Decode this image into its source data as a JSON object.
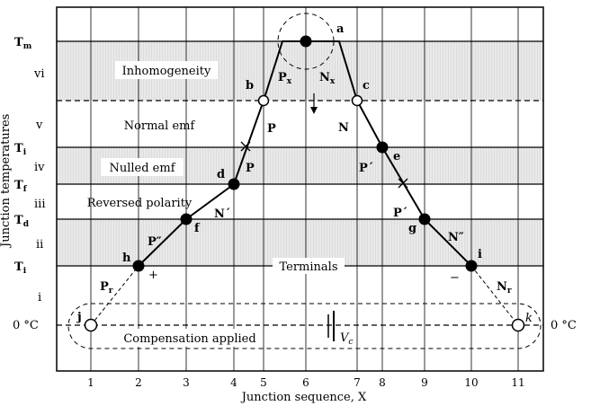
{
  "y_axis": {
    "title": "Junction temperatures",
    "levels": [
      {
        "label": "T",
        "sub": "m"
      },
      {
        "label": "T",
        "sub": "i"
      },
      {
        "label": "T",
        "sub": "f"
      },
      {
        "label": "T",
        "sub": "d"
      },
      {
        "label": "T",
        "sub": "i"
      },
      {
        "label": "0 °C",
        "sub": ""
      }
    ],
    "right_label": "0 °C"
  },
  "zones": [
    "vi",
    "v",
    "iv",
    "iii",
    "ii",
    "i"
  ],
  "regions": {
    "inhomogeneity": "Inhomogeneity",
    "normal_emf": "Normal emf",
    "nulled_emf": "Nulled emf",
    "reversed_polarity": "Reversed polarity",
    "terminals": "Terminals",
    "compensation": "Compensation applied"
  },
  "x_axis": {
    "title": "Junction sequence, X",
    "ticks": [
      "1",
      "2",
      "3",
      "4",
      "5",
      "6",
      "7",
      "8",
      "9",
      "10",
      "11"
    ]
  },
  "points": [
    "j",
    "h",
    "f",
    "d",
    "b",
    "a",
    "c",
    "e",
    "g",
    "i",
    "k"
  ],
  "segments": {
    "px": "P",
    "px_sub": "x",
    "nx": "N",
    "nx_sub": "x",
    "p_left_upper": "P",
    "p_left_lower": "P",
    "n_prime_left": "N´",
    "p_double_prime": "P″",
    "pr": "P",
    "pr_sub": "r",
    "n_right_upper": "N",
    "p_prime_right_upper": "P´",
    "p_prime_right_lower": "P´",
    "n_double_prime": "N″",
    "nr": "N",
    "nr_sub": "r"
  },
  "polarity": {
    "plus": "+",
    "minus": "−"
  },
  "source": {
    "label": "V",
    "sub": "c"
  }
}
